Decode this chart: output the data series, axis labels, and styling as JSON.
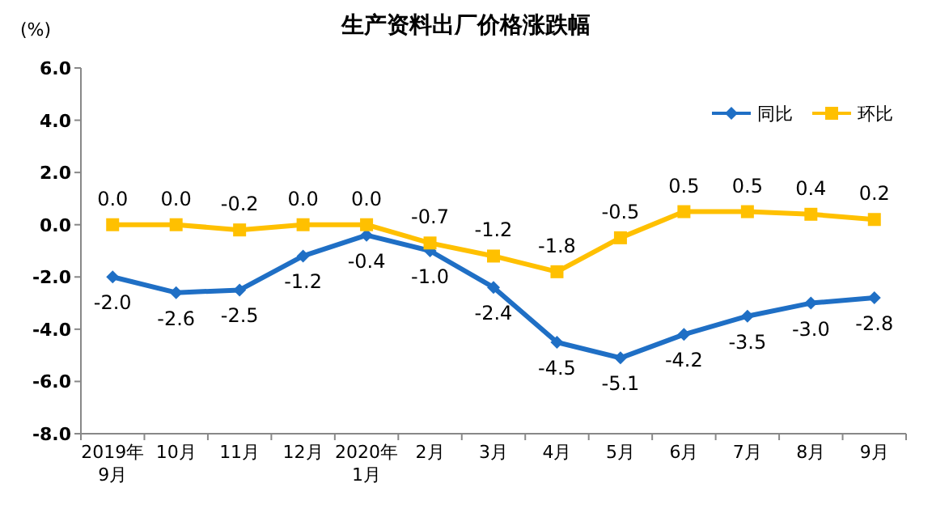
{
  "chart_data": {
    "type": "line",
    "title": "生产资料出厂价格涨跌幅",
    "ylabel": "(%)",
    "categories": [
      "2019年\n9月",
      "10月",
      "11月",
      "12月",
      "2020年\n1月",
      "2月",
      "3月",
      "4月",
      "5月",
      "6月",
      "7月",
      "8月",
      "9月"
    ],
    "series": [
      {
        "name": "同比",
        "color": "#1f6fc5",
        "marker": "diamond",
        "values": [
          -2.0,
          -2.6,
          -2.5,
          -1.2,
          -0.4,
          -1.0,
          -2.4,
          -4.5,
          -5.1,
          -4.2,
          -3.5,
          -3.0,
          -2.8
        ],
        "value_labels": [
          "-2.0",
          "-2.6",
          "-2.5",
          "-1.2",
          "-0.4",
          "-1.0",
          "-2.4",
          "-4.5",
          "-5.1",
          "-4.2",
          "-3.5",
          "-3.0",
          "-2.8"
        ]
      },
      {
        "name": "环比",
        "color": "#ffc000",
        "marker": "square",
        "values": [
          0.0,
          0.0,
          -0.2,
          0.0,
          0.0,
          -0.7,
          -1.2,
          -1.8,
          -0.5,
          0.5,
          0.5,
          0.4,
          0.2
        ],
        "value_labels": [
          "0.0",
          "0.0",
          "-0.2",
          "0.0",
          "0.0",
          "-0.7",
          "-1.2",
          "-1.8",
          "-0.5",
          "0.5",
          "0.5",
          "0.4",
          "0.2"
        ]
      }
    ],
    "ylim": [
      -8,
      6
    ],
    "yticks": [
      {
        "value": 6,
        "label": "6.0"
      },
      {
        "value": 4,
        "label": "4.0"
      },
      {
        "value": 2,
        "label": "2.0"
      },
      {
        "value": 0,
        "label": "0.0"
      },
      {
        "value": -2,
        "label": "-2.0"
      },
      {
        "value": -4,
        "label": "-4.0"
      },
      {
        "value": -6,
        "label": "-6.0"
      },
      {
        "value": -8,
        "label": "-8.0"
      }
    ],
    "legend": "top right",
    "grid": false
  }
}
